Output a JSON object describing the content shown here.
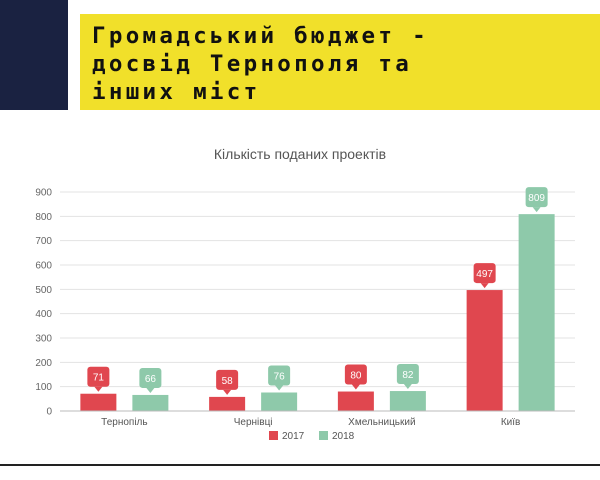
{
  "header": {
    "title_lines": [
      "Громадський бюджет -",
      "досвід Тернополя та",
      "інших міст"
    ],
    "accent_color": "#f1e02a",
    "side_bar_color": "#1a2241"
  },
  "chart_data": {
    "type": "bar",
    "title": "Кількість поданих проектів",
    "categories": [
      "Тернопіль",
      "Чернівці",
      "Хмельницький",
      "Київ"
    ],
    "series": [
      {
        "name": "2017",
        "values": [
          71,
          58,
          80,
          497
        ],
        "color": "#e0474f"
      },
      {
        "name": "2018",
        "values": [
          66,
          76,
          82,
          809
        ],
        "color": "#8ec9aa"
      }
    ],
    "ylim": [
      0,
      900
    ],
    "yticks": [
      0,
      100,
      200,
      300,
      400,
      500,
      600,
      700,
      800,
      900
    ],
    "grid": true,
    "legend": "bottom",
    "data_labels": true
  }
}
